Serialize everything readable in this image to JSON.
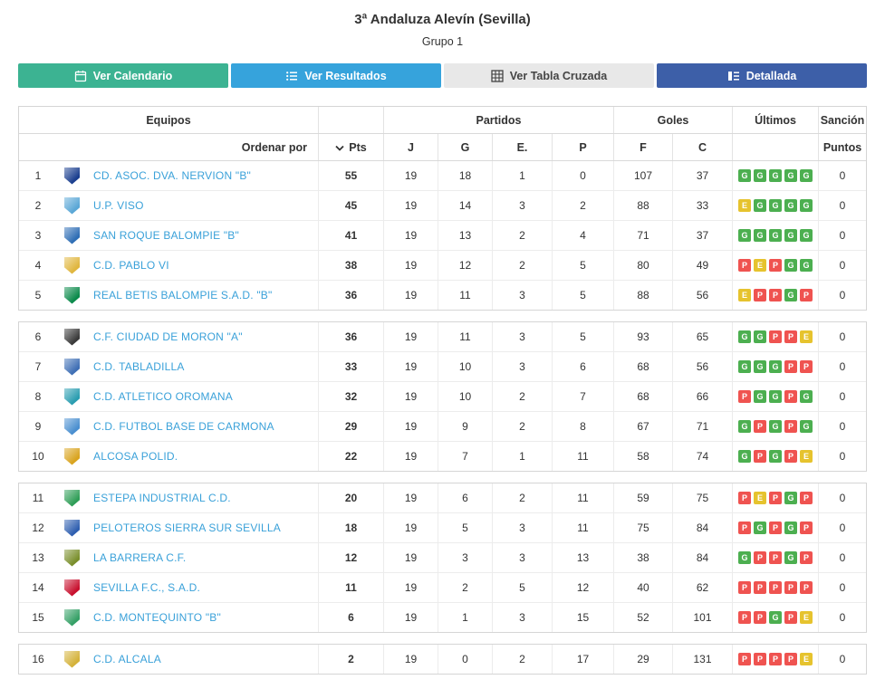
{
  "page": {
    "title": "3ª Andaluza Alevín (Sevilla)",
    "subtitle": "Grupo 1"
  },
  "tabs": [
    {
      "label": "Ver Calendario",
      "icon": "calendar-icon",
      "color": "#3cb392",
      "text_color": "#ffffff"
    },
    {
      "label": "Ver Resultados",
      "icon": "list-icon",
      "color": "#36a3dc",
      "text_color": "#ffffff"
    },
    {
      "label": "Ver Tabla Cruzada",
      "icon": "grid-icon",
      "color": "#e8e8e8",
      "text_color": "#444444"
    },
    {
      "label": "Detallada",
      "icon": "detail-icon",
      "color": "#3d5fa8",
      "text_color": "#ffffff"
    }
  ],
  "table": {
    "group_headers": {
      "equipos": "Equipos",
      "partidos": "Partidos",
      "goles": "Goles",
      "ultimos": "Últimos",
      "sancion": "Sanción"
    },
    "sub_headers": {
      "ordenar": "Ordenar por",
      "pts": "Pts",
      "j": "J",
      "g": "G",
      "e": "E.",
      "p": "P",
      "f": "F",
      "c": "C",
      "puntos": "Puntos"
    },
    "form_colors": {
      "G": "#4caf50",
      "E": "#e6c32e",
      "P": "#ef5350"
    },
    "groups": [
      {
        "rows": [
          {
            "rank": 1,
            "team": "CD. ASOC. DVA. NERVION \"B\"",
            "crest_color": "#1b3f8f",
            "pts": 55,
            "j": 19,
            "g": 18,
            "e": 1,
            "p": 0,
            "f": 107,
            "c": 37,
            "form": [
              "G",
              "G",
              "G",
              "G",
              "G"
            ],
            "sancion": 0
          },
          {
            "rank": 2,
            "team": "U.P. VISO",
            "crest_color": "#5aa7d6",
            "pts": 45,
            "j": 19,
            "g": 14,
            "e": 3,
            "p": 2,
            "f": 88,
            "c": 33,
            "form": [
              "E",
              "G",
              "G",
              "G",
              "G"
            ],
            "sancion": 0
          },
          {
            "rank": 3,
            "team": "SAN ROQUE BALOMPIE \"B\"",
            "crest_color": "#2f6eb5",
            "pts": 41,
            "j": 19,
            "g": 13,
            "e": 2,
            "p": 4,
            "f": 71,
            "c": 37,
            "form": [
              "G",
              "G",
              "G",
              "G",
              "G"
            ],
            "sancion": 0
          },
          {
            "rank": 4,
            "team": "C.D. PABLO VI",
            "crest_color": "#e0b63e",
            "pts": 38,
            "j": 19,
            "g": 12,
            "e": 2,
            "p": 5,
            "f": 80,
            "c": 49,
            "form": [
              "P",
              "E",
              "P",
              "G",
              "G"
            ],
            "sancion": 0
          },
          {
            "rank": 5,
            "team": "REAL BETIS BALOMPIE S.A.D. \"B\"",
            "crest_color": "#0b8a4b",
            "pts": 36,
            "j": 19,
            "g": 11,
            "e": 3,
            "p": 5,
            "f": 88,
            "c": 56,
            "form": [
              "E",
              "P",
              "P",
              "G",
              "P"
            ],
            "sancion": 0
          }
        ]
      },
      {
        "rows": [
          {
            "rank": 6,
            "team": "C.F. CIUDAD DE MORON \"A\"",
            "crest_color": "#3a3a3a",
            "pts": 36,
            "j": 19,
            "g": 11,
            "e": 3,
            "p": 5,
            "f": 93,
            "c": 65,
            "form": [
              "G",
              "G",
              "P",
              "P",
              "E"
            ],
            "sancion": 0
          },
          {
            "rank": 7,
            "team": "C.D. TABLADILLA",
            "crest_color": "#3f6fb5",
            "pts": 33,
            "j": 19,
            "g": 10,
            "e": 3,
            "p": 6,
            "f": 68,
            "c": 56,
            "form": [
              "G",
              "G",
              "G",
              "P",
              "P"
            ],
            "sancion": 0
          },
          {
            "rank": 8,
            "team": "C.D. ATLETICO OROMANA",
            "crest_color": "#2a9db0",
            "pts": 32,
            "j": 19,
            "g": 10,
            "e": 2,
            "p": 7,
            "f": 68,
            "c": 66,
            "form": [
              "P",
              "G",
              "G",
              "P",
              "G"
            ],
            "sancion": 0
          },
          {
            "rank": 9,
            "team": "C.D. FUTBOL BASE DE CARMONA",
            "crest_color": "#4a8fd0",
            "pts": 29,
            "j": 19,
            "g": 9,
            "e": 2,
            "p": 8,
            "f": 67,
            "c": 71,
            "form": [
              "G",
              "P",
              "G",
              "P",
              "G"
            ],
            "sancion": 0
          },
          {
            "rank": 10,
            "team": "ALCOSA POLID.",
            "crest_color": "#d9a41f",
            "pts": 22,
            "j": 19,
            "g": 7,
            "e": 1,
            "p": 11,
            "f": 58,
            "c": 74,
            "form": [
              "G",
              "P",
              "G",
              "P",
              "E"
            ],
            "sancion": 0
          }
        ]
      },
      {
        "rows": [
          {
            "rank": 11,
            "team": "ESTEPA INDUSTRIAL C.D.",
            "crest_color": "#2f9e57",
            "pts": 20,
            "j": 19,
            "g": 6,
            "e": 2,
            "p": 11,
            "f": 59,
            "c": 75,
            "form": [
              "P",
              "E",
              "P",
              "G",
              "P"
            ],
            "sancion": 0
          },
          {
            "rank": 12,
            "team": "PELOTEROS SIERRA SUR SEVILLA",
            "crest_color": "#2f5fb0",
            "pts": 18,
            "j": 19,
            "g": 5,
            "e": 3,
            "p": 11,
            "f": 75,
            "c": 84,
            "form": [
              "P",
              "G",
              "P",
              "G",
              "P"
            ],
            "sancion": 0
          },
          {
            "rank": 13,
            "team": "LA BARRERA C.F.",
            "crest_color": "#7a8f2c",
            "pts": 12,
            "j": 19,
            "g": 3,
            "e": 3,
            "p": 13,
            "f": 38,
            "c": 84,
            "form": [
              "G",
              "P",
              "P",
              "G",
              "P"
            ],
            "sancion": 0
          },
          {
            "rank": 14,
            "team": "SEVILLA F.C., S.A.D.",
            "crest_color": "#c8102e",
            "pts": 11,
            "j": 19,
            "g": 2,
            "e": 5,
            "p": 12,
            "f": 40,
            "c": 62,
            "form": [
              "P",
              "P",
              "P",
              "P",
              "P"
            ],
            "sancion": 0
          },
          {
            "rank": 15,
            "team": "C.D. MONTEQUINTO \"B\"",
            "crest_color": "#35a066",
            "pts": 6,
            "j": 19,
            "g": 1,
            "e": 3,
            "p": 15,
            "f": 52,
            "c": 101,
            "form": [
              "P",
              "P",
              "G",
              "P",
              "E"
            ],
            "sancion": 0
          }
        ]
      },
      {
        "rows": [
          {
            "rank": 16,
            "team": "C.D. ALCALA",
            "crest_color": "#d4b23a",
            "pts": 2,
            "j": 19,
            "g": 0,
            "e": 2,
            "p": 17,
            "f": 29,
            "c": 131,
            "form": [
              "P",
              "P",
              "P",
              "P",
              "E"
            ],
            "sancion": 0
          }
        ]
      }
    ]
  }
}
